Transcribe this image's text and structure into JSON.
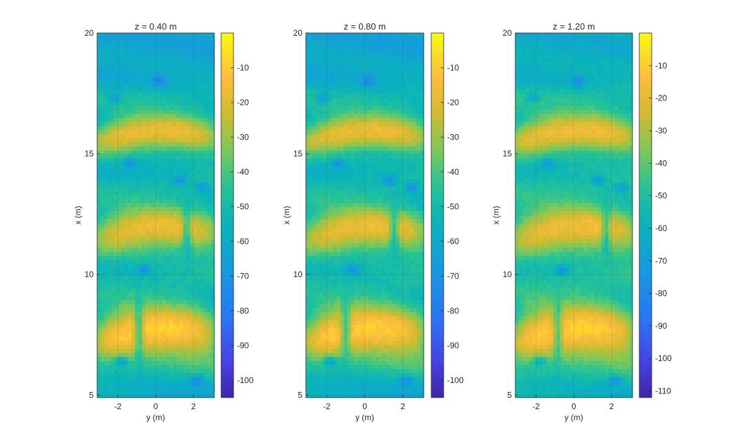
{
  "chart_data": [
    {
      "type": "heatmap",
      "title": "z = 0.40 m",
      "xlabel": "y (m)",
      "ylabel": "x (m)",
      "xlim": [
        -3.1,
        3.1
      ],
      "ylim": [
        4.9,
        20
      ],
      "xticks": [
        -2,
        0,
        2
      ],
      "xtick_labels": [
        "-2",
        "0",
        "2"
      ],
      "yticks": [
        5,
        10,
        15,
        20
      ],
      "ytick_labels": [
        "5",
        "10",
        "15",
        "20"
      ],
      "grid": true,
      "colormap": "parula",
      "clim": [
        -105,
        0
      ],
      "colorbar_ticks": [
        -10,
        -20,
        -30,
        -40,
        -50,
        -60,
        -70,
        -80,
        -90,
        -100
      ],
      "colorbar_tick_labels": [
        "-10",
        "-20",
        "-30",
        "-40",
        "-50",
        "-60",
        "-70",
        "-80",
        "-90",
        "-100"
      ],
      "bands": [
        {
          "x_center": 15.9,
          "peak_value": -14,
          "halfwidth": 0.55
        },
        {
          "x_center": 11.9,
          "peak_value": -14,
          "halfwidth": 0.65
        },
        {
          "x_center": 7.7,
          "peak_value": -6,
          "halfwidth": 0.75
        }
      ]
    },
    {
      "type": "heatmap",
      "title": "z = 0.80 m",
      "xlabel": "y (m)",
      "ylabel": "x (m)",
      "xlim": [
        -3.1,
        3.1
      ],
      "ylim": [
        4.9,
        20
      ],
      "xticks": [
        -2,
        0,
        2
      ],
      "xtick_labels": [
        "-2",
        "0",
        "2"
      ],
      "yticks": [
        5,
        10,
        15,
        20
      ],
      "ytick_labels": [
        "5",
        "10",
        "15",
        "20"
      ],
      "grid": true,
      "colormap": "parula",
      "clim": [
        -105,
        0
      ],
      "colorbar_ticks": [
        -10,
        -20,
        -30,
        -40,
        -50,
        -60,
        -70,
        -80,
        -90,
        -100
      ],
      "colorbar_tick_labels": [
        "-10",
        "-20",
        "-30",
        "-40",
        "-50",
        "-60",
        "-70",
        "-80",
        "-90",
        "-100"
      ],
      "bands": [
        {
          "x_center": 15.9,
          "peak_value": -14,
          "halfwidth": 0.55
        },
        {
          "x_center": 11.9,
          "peak_value": -14,
          "halfwidth": 0.65
        },
        {
          "x_center": 7.7,
          "peak_value": -6,
          "halfwidth": 0.75
        }
      ]
    },
    {
      "type": "heatmap",
      "title": "z = 1.20 m",
      "xlabel": "y (m)",
      "ylabel": "x (m)",
      "xlim": [
        -3.1,
        3.1
      ],
      "ylim": [
        4.9,
        20
      ],
      "xticks": [
        -2,
        0,
        2
      ],
      "xtick_labels": [
        "-2",
        "0",
        "2"
      ],
      "yticks": [
        5,
        10,
        15,
        20
      ],
      "ytick_labels": [
        "5",
        "10",
        "15",
        "20"
      ],
      "grid": true,
      "colormap": "parula",
      "clim": [
        -112,
        0
      ],
      "colorbar_ticks": [
        -10,
        -20,
        -30,
        -40,
        -50,
        -60,
        -70,
        -80,
        -90,
        -100,
        -110
      ],
      "colorbar_tick_labels": [
        "-10",
        "-20",
        "-30",
        "-40",
        "-50",
        "-60",
        "-70",
        "-80",
        "-90",
        "-100",
        "-110"
      ],
      "bands": [
        {
          "x_center": 15.9,
          "peak_value": -14,
          "halfwidth": 0.55
        },
        {
          "x_center": 11.9,
          "peak_value": -14,
          "halfwidth": 0.65
        },
        {
          "x_center": 7.7,
          "peak_value": -6,
          "halfwidth": 0.75
        }
      ]
    }
  ]
}
